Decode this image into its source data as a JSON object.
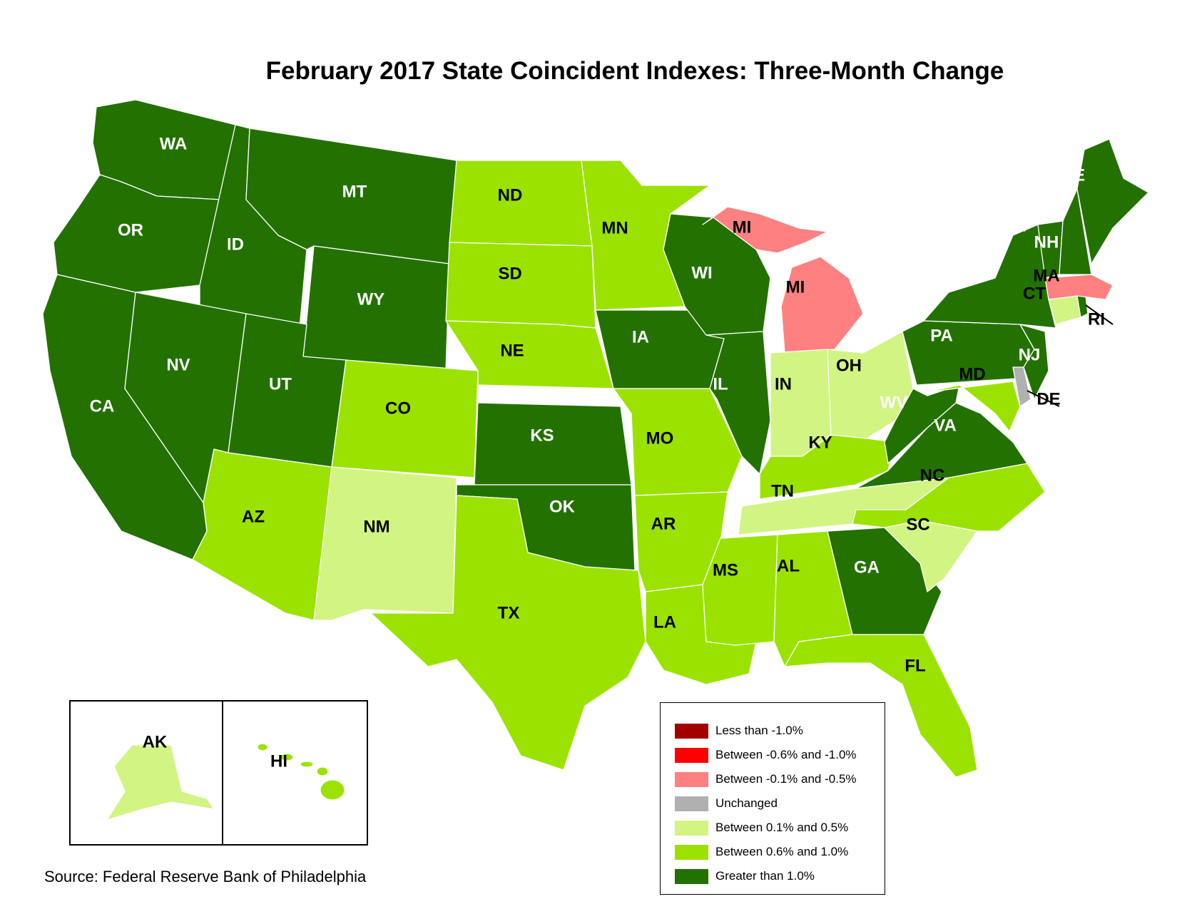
{
  "title": "February 2017 State Coincident Indexes: Three-Month Change",
  "source": "Source: Federal Reserve Bank of Philadelphia",
  "colors": {
    "lt_neg1": "#a50000",
    "neg06_10": "#ff0000",
    "neg01_05": "#ff8080",
    "unchanged": "#b0b0b0",
    "pos01_05": "#d2f482",
    "pos06_10": "#9be200",
    "gt1": "#237100"
  },
  "legend": [
    {
      "key": "lt_neg1",
      "label": "Less than -1.0%"
    },
    {
      "key": "neg06_10",
      "label": "Between -0.6% and -1.0%"
    },
    {
      "key": "neg01_05",
      "label": "Between -0.1% and -0.5%"
    },
    {
      "key": "unchanged",
      "label": "Unchanged"
    },
    {
      "key": "pos01_05",
      "label": "Between 0.1% and 0.5%"
    },
    {
      "key": "pos06_10",
      "label": "Between 0.6% and 1.0%"
    },
    {
      "key": "gt1",
      "label": "Greater than 1.0%"
    }
  ],
  "states": {
    "WA": "gt1",
    "OR": "gt1",
    "CA": "gt1",
    "ID": "gt1",
    "NV": "gt1",
    "MT": "gt1",
    "WY": "gt1",
    "UT": "gt1",
    "AZ": "pos06_10",
    "CO": "pos06_10",
    "NM": "pos01_05",
    "ND": "pos06_10",
    "SD": "pos06_10",
    "NE": "pos06_10",
    "KS": "gt1",
    "OK": "gt1",
    "TX": "pos06_10",
    "MN": "pos06_10",
    "IA": "gt1",
    "MO": "pos06_10",
    "AR": "pos06_10",
    "LA": "pos06_10",
    "WI": "gt1",
    "IL": "gt1",
    "MI": "neg01_05",
    "IN": "pos01_05",
    "OH": "pos01_05",
    "KY": "pos06_10",
    "TN": "pos01_05",
    "MS": "pos06_10",
    "AL": "pos06_10",
    "GA": "gt1",
    "FL": "pos06_10",
    "SC": "pos01_05",
    "NC": "pos06_10",
    "VA": "gt1",
    "WV": "gt1",
    "PA": "gt1",
    "NY": "gt1",
    "VT": "gt1",
    "NH": "gt1",
    "ME": "gt1",
    "MA": "neg01_05",
    "CT": "pos01_05",
    "RI": "gt1",
    "NJ": "gt1",
    "DE": "unchanged",
    "MD": "pos06_10",
    "AK": "pos01_05",
    "HI": "pos06_10"
  }
}
